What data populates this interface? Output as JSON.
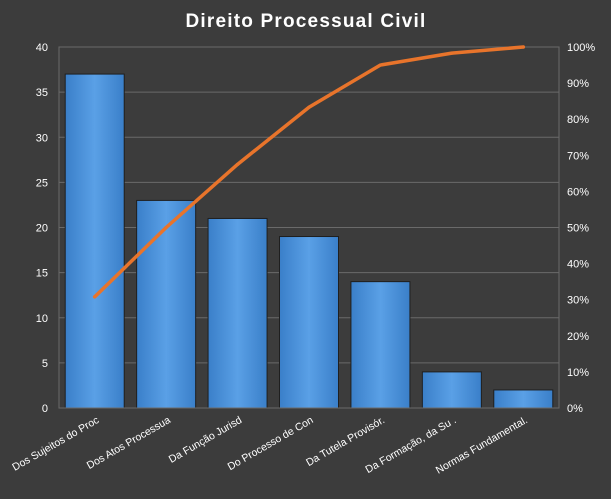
{
  "chart_data": {
    "type": "bar",
    "title": "Direito  Processual  Civil",
    "categories": [
      "Dos Sujeitos do Proc",
      "Dos Atos Processua",
      "Da Função Jurisd",
      "Do Processo de Con",
      "Da Tutela Provisór.",
      "Da Formação, da Su .",
      "Normas Fundamental."
    ],
    "series": [
      {
        "type": "bar",
        "values": [
          37,
          23,
          21,
          19,
          14,
          4,
          2
        ]
      },
      {
        "type": "line",
        "axis": "secondary",
        "values": [
          30.8,
          50.0,
          67.5,
          83.3,
          95.0,
          98.3,
          100.0
        ]
      }
    ],
    "ylim": [
      0,
      40
    ],
    "yticks": [
      "0",
      "5",
      "10",
      "15",
      "20",
      "25",
      "30",
      "35",
      "40"
    ],
    "y2lim": [
      0,
      100
    ],
    "y2ticks": [
      "0%",
      "10%",
      "20%",
      "30%",
      "40%",
      "50%",
      "60%",
      "70%",
      "80%",
      "90%",
      "100%"
    ],
    "grid": true,
    "colors": {
      "bar": "#4a8fd6",
      "bar_edge": "#1f1f1f",
      "line": "#e8742b",
      "grid": "#6a6a6a",
      "background": "#3c3c3c"
    }
  }
}
